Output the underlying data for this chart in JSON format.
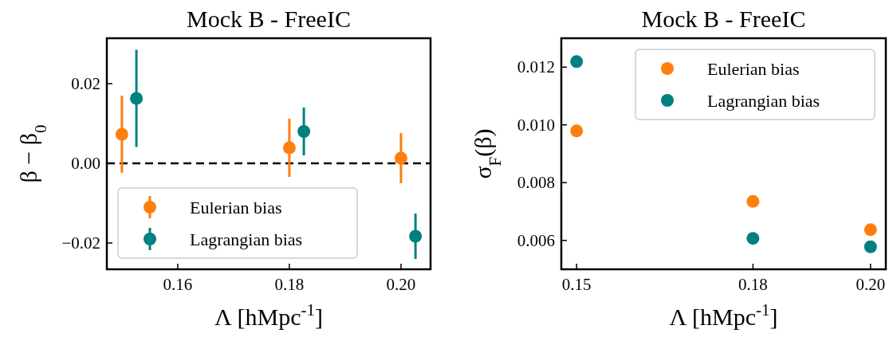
{
  "chart_data": [
    {
      "type": "scatter",
      "title": "Mock B - FreeIC",
      "xlabel": "Λ [hMpc$^{-1}$]",
      "ylabel": "β − β$_{0}$",
      "xlim": [
        0.1473,
        0.2053
      ],
      "xticks": [
        {
          "value": 0.16,
          "label": "0.16"
        },
        {
          "value": 0.18,
          "label": "0.18"
        },
        {
          "value": 0.2,
          "label": "0.20"
        }
      ],
      "ylim": [
        -0.0266,
        0.0314
      ],
      "yticks": [
        {
          "value": -0.02,
          "label": "−0.02"
        },
        {
          "value": 0,
          "label": "0.00"
        },
        {
          "value": 0.02,
          "label": "0.02"
        }
      ],
      "series": [
        {
          "name": "Eulerian bias",
          "color": "#ff7f0e",
          "x": [
            0.15,
            0.18,
            0.2
          ],
          "values": [
            0.0073,
            0.0039,
            0.0013
          ],
          "errors": [
            0.0097,
            0.0073,
            0.0063
          ]
        },
        {
          "name": "Lagrangian bias",
          "color": "#008080",
          "x": [
            0.1526,
            0.1826,
            0.2026
          ],
          "values": [
            0.0163,
            0.008,
            -0.0183
          ],
          "errors": [
            0.0122,
            0.006,
            0.0057
          ]
        }
      ],
      "ref_lines": [
        {
          "axis": "y",
          "value": 0,
          "color": "#000000",
          "line_style": "dashed"
        }
      ],
      "marker": "circle",
      "legend": "bottom left",
      "grid": false
    },
    {
      "type": "scatter",
      "title": "Mock B - FreeIC",
      "xlabel": "Λ [hMpc$^{-1}$]",
      "ylabel": "σ$_{F}$(β)",
      "xlim": [
        0.1474,
        0.2026
      ],
      "xticks": [
        {
          "value": 0.15,
          "label": "0.15"
        },
        {
          "value": 0.18,
          "label": "0.18"
        },
        {
          "value": 0.2,
          "label": "0.20"
        }
      ],
      "ylim": [
        0.005,
        0.013
      ],
      "yticks": [
        {
          "value": 0.006,
          "label": "0.006"
        },
        {
          "value": 0.008,
          "label": "0.008"
        },
        {
          "value": 0.01,
          "label": "0.010"
        },
        {
          "value": 0.012,
          "label": "0.012"
        }
      ],
      "series": [
        {
          "name": "Eulerian bias",
          "color": "#ff7f0e",
          "x": [
            0.15,
            0.18,
            0.2
          ],
          "values": [
            0.00979,
            0.00735,
            0.00637
          ]
        },
        {
          "name": "Lagrangian bias",
          "color": "#008080",
          "x": [
            0.15,
            0.18,
            0.2
          ],
          "values": [
            0.01219,
            0.00607,
            0.00578
          ]
        }
      ],
      "marker": "circle",
      "legend": "top right",
      "grid": false
    }
  ]
}
